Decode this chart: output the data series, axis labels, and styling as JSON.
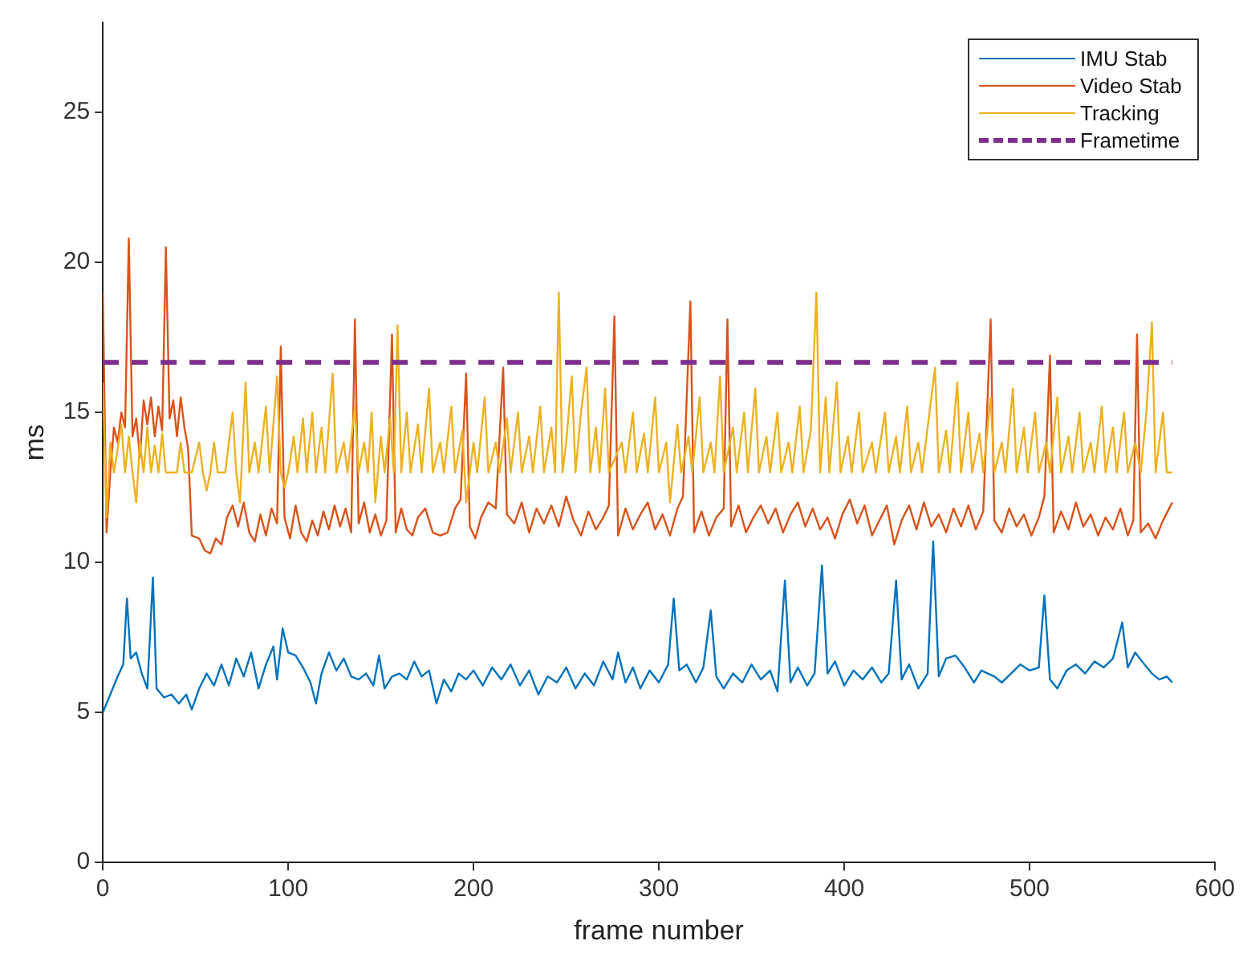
{
  "chart_data": {
    "type": "line",
    "xlabel": "frame number",
    "ylabel": "ms",
    "xlim": [
      0,
      600
    ],
    "xticks": [
      0,
      100,
      200,
      300,
      400,
      500,
      600
    ],
    "ylim": [
      0,
      28
    ],
    "yticks": [
      0,
      5,
      10,
      15,
      20,
      25
    ],
    "legend": "top right",
    "marker": "none",
    "line_style": "solid",
    "series": [
      {
        "name": "IMU Stab",
        "color": "#0072bd",
        "x": [
          0,
          4,
          8,
          11,
          13,
          15,
          18,
          21,
          24,
          27,
          29,
          33,
          37,
          41,
          45,
          48,
          52,
          56,
          60,
          64,
          68,
          72,
          76,
          80,
          84,
          88,
          92,
          94,
          97,
          100,
          104,
          108,
          112,
          115,
          118,
          122,
          126,
          130,
          134,
          138,
          142,
          146,
          149,
          152,
          156,
          160,
          164,
          168,
          172,
          176,
          180,
          184,
          188,
          192,
          196,
          200,
          205,
          210,
          215,
          220,
          225,
          230,
          235,
          240,
          245,
          250,
          255,
          260,
          265,
          270,
          275,
          278,
          282,
          286,
          290,
          295,
          300,
          305,
          308,
          311,
          315,
          320,
          324,
          328,
          331,
          335,
          340,
          345,
          350,
          355,
          360,
          364,
          368,
          371,
          375,
          380,
          384,
          388,
          391,
          395,
          400,
          405,
          410,
          415,
          420,
          424,
          428,
          431,
          435,
          440,
          445,
          448,
          451,
          455,
          460,
          465,
          470,
          474,
          481,
          485,
          490,
          495,
          500,
          505,
          508,
          511,
          515,
          520,
          525,
          530,
          535,
          540,
          545,
          550,
          553,
          557,
          562,
          566,
          570,
          574,
          577
        ],
        "values": [
          5.0,
          5.6,
          6.2,
          6.6,
          8.8,
          6.8,
          7.0,
          6.3,
          5.8,
          9.5,
          5.8,
          5.5,
          5.6,
          5.3,
          5.6,
          5.1,
          5.8,
          6.3,
          5.9,
          6.6,
          5.9,
          6.8,
          6.2,
          7.0,
          5.8,
          6.6,
          7.2,
          6.1,
          7.8,
          7.0,
          6.9,
          6.5,
          6.0,
          5.3,
          6.3,
          7.0,
          6.4,
          6.8,
          6.2,
          6.1,
          6.3,
          5.9,
          6.9,
          5.8,
          6.2,
          6.3,
          6.1,
          6.7,
          6.2,
          6.4,
          5.3,
          6.1,
          5.7,
          6.3,
          6.1,
          6.4,
          5.9,
          6.5,
          6.1,
          6.6,
          5.9,
          6.4,
          5.6,
          6.2,
          6.0,
          6.5,
          5.8,
          6.3,
          5.9,
          6.7,
          6.1,
          7.0,
          6.0,
          6.5,
          5.8,
          6.4,
          6.0,
          6.6,
          8.8,
          6.4,
          6.6,
          6.0,
          6.5,
          8.4,
          6.2,
          5.8,
          6.3,
          6.0,
          6.6,
          6.1,
          6.4,
          5.7,
          9.4,
          6.0,
          6.5,
          5.9,
          6.3,
          9.9,
          6.3,
          6.7,
          5.9,
          6.4,
          6.1,
          6.5,
          6.0,
          6.3,
          9.4,
          6.1,
          6.6,
          5.8,
          6.3,
          10.7,
          6.2,
          6.8,
          6.9,
          6.5,
          6.0,
          6.4,
          6.2,
          6.0,
          6.3,
          6.6,
          6.4,
          6.5,
          8.9,
          6.1,
          5.8,
          6.4,
          6.6,
          6.3,
          6.7,
          6.5,
          6.8,
          8.0,
          6.5,
          7.0,
          6.6,
          6.3,
          6.1,
          6.2,
          6.0
        ]
      },
      {
        "name": "Video Stab",
        "color": "#d95319",
        "x": [
          0,
          2,
          4,
          6,
          8,
          10,
          12,
          14,
          16,
          18,
          20,
          22,
          24,
          26,
          28,
          30,
          32,
          34,
          36,
          38,
          40,
          42,
          44,
          46,
          48,
          52,
          55,
          58,
          61,
          64,
          67,
          70,
          73,
          76,
          79,
          82,
          85,
          88,
          91,
          94,
          96,
          98,
          101,
          104,
          107,
          110,
          113,
          116,
          119,
          122,
          125,
          128,
          131,
          134,
          136,
          138,
          141,
          144,
          147,
          150,
          153,
          156,
          158,
          161,
          164,
          167,
          170,
          174,
          178,
          182,
          186,
          190,
          193,
          196,
          198,
          201,
          204,
          208,
          212,
          216,
          218,
          222,
          226,
          230,
          234,
          238,
          242,
          246,
          250,
          254,
          258,
          262,
          266,
          270,
          273,
          276,
          278,
          282,
          286,
          290,
          294,
          298,
          302,
          306,
          310,
          313,
          317,
          319,
          323,
          327,
          331,
          335,
          337,
          339,
          343,
          347,
          351,
          355,
          359,
          363,
          367,
          371,
          375,
          379,
          383,
          387,
          391,
          395,
          399,
          403,
          407,
          411,
          415,
          419,
          423,
          427,
          431,
          435,
          439,
          443,
          447,
          451,
          455,
          459,
          463,
          467,
          471,
          475,
          479,
          481,
          485,
          489,
          493,
          497,
          501,
          505,
          508,
          511,
          513,
          517,
          521,
          525,
          529,
          533,
          537,
          541,
          545,
          549,
          553,
          556,
          558,
          560,
          564,
          568,
          572,
          577
        ],
        "values": [
          19.0,
          11.0,
          13.0,
          14.5,
          14.0,
          15.0,
          14.5,
          20.8,
          14.2,
          14.8,
          13.5,
          15.4,
          14.6,
          15.5,
          14.2,
          15.2,
          14.4,
          20.5,
          14.8,
          15.4,
          14.2,
          15.5,
          14.5,
          13.8,
          10.9,
          10.8,
          10.4,
          10.3,
          10.8,
          10.6,
          11.5,
          11.9,
          11.2,
          12.0,
          11.0,
          10.7,
          11.6,
          10.9,
          11.8,
          11.3,
          17.2,
          11.5,
          10.8,
          11.9,
          11.0,
          10.7,
          11.4,
          10.9,
          11.7,
          11.1,
          11.9,
          11.2,
          11.8,
          11.0,
          18.1,
          11.3,
          12.0,
          11.0,
          11.6,
          10.9,
          11.4,
          17.6,
          11.0,
          11.8,
          11.1,
          10.9,
          11.5,
          11.8,
          11.0,
          10.9,
          11.0,
          11.8,
          12.1,
          16.3,
          11.2,
          10.8,
          11.5,
          12.0,
          11.8,
          16.5,
          11.6,
          11.3,
          12.0,
          11.0,
          11.8,
          11.3,
          11.9,
          11.2,
          12.2,
          11.4,
          10.9,
          11.7,
          11.1,
          11.5,
          11.9,
          18.2,
          10.9,
          11.8,
          11.1,
          11.6,
          12.0,
          11.1,
          11.6,
          10.9,
          11.8,
          12.2,
          18.7,
          11.0,
          11.7,
          10.9,
          11.5,
          11.8,
          18.1,
          11.2,
          11.9,
          11.0,
          11.5,
          11.9,
          11.3,
          11.8,
          11.0,
          11.6,
          12.0,
          11.2,
          11.8,
          11.1,
          11.5,
          10.8,
          11.6,
          12.1,
          11.3,
          11.9,
          10.9,
          11.4,
          11.9,
          10.6,
          11.4,
          11.9,
          11.1,
          12.0,
          11.2,
          11.6,
          11.0,
          11.8,
          11.2,
          11.9,
          11.1,
          11.7,
          18.1,
          11.4,
          11.0,
          11.8,
          11.2,
          11.6,
          10.9,
          11.5,
          12.2,
          16.9,
          11.0,
          11.7,
          11.1,
          12.0,
          11.2,
          11.6,
          10.9,
          11.5,
          11.1,
          11.8,
          10.9,
          11.4,
          17.6,
          11.0,
          11.3,
          10.8,
          11.4,
          12.0
        ]
      },
      {
        "name": "Tracking",
        "color": "#edb120",
        "x": [
          0,
          2,
          4,
          6,
          8,
          10,
          12,
          14,
          16,
          18,
          20,
          22,
          24,
          26,
          28,
          30,
          32,
          34,
          36,
          40,
          42,
          44,
          48,
          52,
          54,
          56,
          58,
          60,
          62,
          66,
          70,
          72,
          74,
          77,
          79,
          82,
          84,
          88,
          90,
          94,
          96,
          98,
          100,
          103,
          105,
          108,
          110,
          113,
          115,
          118,
          120,
          124,
          126,
          130,
          132,
          136,
          138,
          141,
          143,
          145,
          147,
          150,
          152,
          155,
          157,
          159,
          161,
          164,
          166,
          170,
          172,
          176,
          178,
          182,
          184,
          188,
          190,
          194,
          196,
          200,
          202,
          206,
          208,
          212,
          214,
          218,
          220,
          224,
          226,
          230,
          232,
          236,
          238,
          242,
          244,
          246,
          248,
          250,
          253,
          255,
          258,
          261,
          263,
          266,
          268,
          271,
          273,
          280,
          282,
          286,
          288,
          292,
          294,
          298,
          300,
          304,
          306,
          310,
          312,
          316,
          318,
          322,
          324,
          328,
          330,
          333,
          335,
          340,
          342,
          346,
          348,
          352,
          354,
          358,
          360,
          364,
          366,
          370,
          372,
          376,
          378,
          382,
          385,
          387,
          390,
          392,
          396,
          398,
          402,
          404,
          408,
          410,
          415,
          417,
          422,
          424,
          428,
          430,
          434,
          436,
          440,
          442,
          446,
          449,
          451,
          455,
          457,
          461,
          463,
          467,
          469,
          473,
          475,
          479,
          481,
          485,
          487,
          491,
          493,
          497,
          499,
          503,
          505,
          509,
          511,
          515,
          517,
          521,
          523,
          527,
          529,
          533,
          535,
          539,
          541,
          545,
          547,
          551,
          553,
          557,
          560,
          563,
          566,
          568,
          572,
          574,
          577
        ],
        "values": [
          16.0,
          11.5,
          14.0,
          13.0,
          13.8,
          14.6,
          13.0,
          14.2,
          13.0,
          12.0,
          14.0,
          13.0,
          14.5,
          13.0,
          13.9,
          13.0,
          14.3,
          13.0,
          13.0,
          13.0,
          14.0,
          13.0,
          13.0,
          14.0,
          13.0,
          12.4,
          13.0,
          14.0,
          13.0,
          13.0,
          15.0,
          13.0,
          12.0,
          16.0,
          13.0,
          14.0,
          13.0,
          15.2,
          13.0,
          16.2,
          13.0,
          12.5,
          13.0,
          14.2,
          13.0,
          14.8,
          13.0,
          15.0,
          13.0,
          14.5,
          13.0,
          16.3,
          13.0,
          14.0,
          13.0,
          15.2,
          13.0,
          14.0,
          13.0,
          15.0,
          12.0,
          14.2,
          13.0,
          14.8,
          13.0,
          17.9,
          13.0,
          15.0,
          13.0,
          14.6,
          13.0,
          15.8,
          13.0,
          14.0,
          13.0,
          15.2,
          13.0,
          14.4,
          12.0,
          14.0,
          13.0,
          15.5,
          13.0,
          14.0,
          13.0,
          14.8,
          13.0,
          15.0,
          13.0,
          14.2,
          13.0,
          15.2,
          13.0,
          14.5,
          13.0,
          19.0,
          13.0,
          14.0,
          16.2,
          13.0,
          15.0,
          16.5,
          13.0,
          14.5,
          13.0,
          15.8,
          13.0,
          14.0,
          13.0,
          15.0,
          13.0,
          14.3,
          13.0,
          15.5,
          13.0,
          14.0,
          12.0,
          14.6,
          13.0,
          14.2,
          13.0,
          15.5,
          13.0,
          14.0,
          13.0,
          16.2,
          13.0,
          14.5,
          13.0,
          15.0,
          13.0,
          15.8,
          13.0,
          14.2,
          13.0,
          15.0,
          13.0,
          14.0,
          13.0,
          15.2,
          13.0,
          14.4,
          19.0,
          13.0,
          15.5,
          13.0,
          16.0,
          13.0,
          14.2,
          13.0,
          15.0,
          13.0,
          14.0,
          13.0,
          15.0,
          13.0,
          14.2,
          13.0,
          15.2,
          13.0,
          14.0,
          13.0,
          15.0,
          16.5,
          13.0,
          14.4,
          13.0,
          16.0,
          13.0,
          15.0,
          13.0,
          14.3,
          13.0,
          15.5,
          13.0,
          14.0,
          13.0,
          15.8,
          13.0,
          14.5,
          13.0,
          15.0,
          13.0,
          14.0,
          13.0,
          15.5,
          13.0,
          14.2,
          13.0,
          15.0,
          13.0,
          14.0,
          13.0,
          15.2,
          13.0,
          14.5,
          13.0,
          15.0,
          13.0,
          14.0,
          13.0,
          15.0,
          18.0,
          13.0,
          15.0,
          13.0,
          13.0
        ]
      },
      {
        "name": "Frametime",
        "color": "#7e2f8e",
        "x": [
          0,
          577
        ],
        "values": [
          16.67,
          16.67
        ],
        "line_style": "dashed"
      }
    ]
  }
}
